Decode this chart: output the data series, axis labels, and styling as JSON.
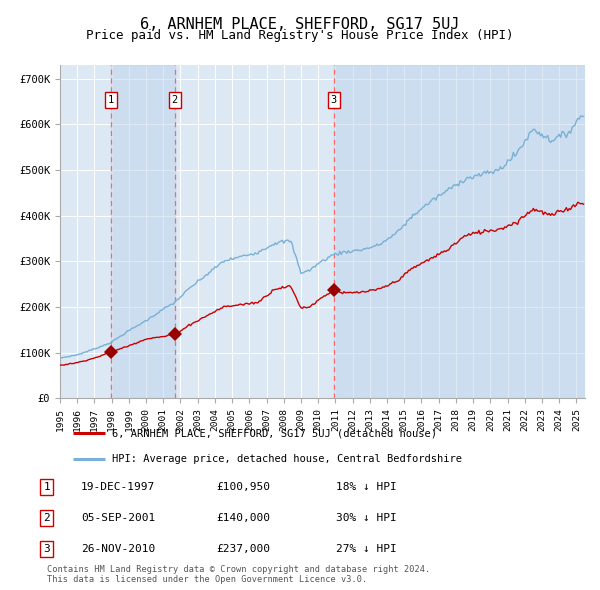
{
  "title": "6, ARNHEM PLACE, SHEFFORD, SG17 5UJ",
  "subtitle": "Price paid vs. HM Land Registry's House Price Index (HPI)",
  "title_fontsize": 11,
  "subtitle_fontsize": 9,
  "background_color": "#ffffff",
  "plot_bg_color": "#dce9f5",
  "grid_color": "#ffffff",
  "ylim": [
    0,
    730000
  ],
  "yticks": [
    0,
    100000,
    200000,
    300000,
    400000,
    500000,
    600000,
    700000
  ],
  "ytick_labels": [
    "£0",
    "£100K",
    "£200K",
    "£300K",
    "£400K",
    "£500K",
    "£600K",
    "£700K"
  ],
  "sale_dates_decimal": [
    1997.96,
    2001.67,
    2010.9
  ],
  "sale_prices": [
    100950,
    140000,
    237000
  ],
  "sale_labels": [
    "1",
    "2",
    "3"
  ],
  "sale_info": [
    {
      "label": "1",
      "date": "19-DEC-1997",
      "price": "£100,950",
      "hpi": "18% ↓ HPI"
    },
    {
      "label": "2",
      "date": "05-SEP-2001",
      "price": "£140,000",
      "hpi": "30% ↓ HPI"
    },
    {
      "label": "3",
      "date": "26-NOV-2010",
      "price": "£237,000",
      "hpi": "27% ↓ HPI"
    }
  ],
  "legend_line1": "6, ARNHEM PLACE, SHEFFORD, SG17 5UJ (detached house)",
  "legend_line2": "HPI: Average price, detached house, Central Bedfordshire",
  "footer": "Contains HM Land Registry data © Crown copyright and database right 2024.\nThis data is licensed under the Open Government Licence v3.0.",
  "red_line_color": "#cc0000",
  "blue_line_color": "#7ab0d4",
  "dashed_line_color": "#ff6666",
  "shade_color": "#b8d0e8",
  "marker_color": "#990000",
  "blue_anchor_years": [
    1995.0,
    1996.0,
    1997.0,
    1997.96,
    1999.0,
    2000.0,
    2001.0,
    2001.67,
    2002.5,
    2003.5,
    2004.5,
    2005.5,
    2006.5,
    2007.5,
    2008.4,
    2009.0,
    2009.5,
    2010.0,
    2010.9,
    2011.5,
    2012.5,
    2013.5,
    2014.5,
    2015.5,
    2016.5,
    2017.5,
    2018.5,
    2019.5,
    2020.5,
    2021.5,
    2022.5,
    2023.5,
    2024.5,
    2025.3
  ],
  "blue_anchor_vals": [
    88000,
    95000,
    108000,
    122000,
    148000,
    170000,
    195000,
    210000,
    240000,
    270000,
    300000,
    310000,
    320000,
    340000,
    345000,
    275000,
    280000,
    295000,
    315000,
    320000,
    325000,
    335000,
    360000,
    400000,
    430000,
    455000,
    480000,
    490000,
    500000,
    535000,
    590000,
    565000,
    580000,
    620000
  ],
  "red_anchor_years": [
    1995.0,
    1996.0,
    1997.0,
    1997.96,
    1999.0,
    2000.0,
    2001.0,
    2001.67,
    2002.5,
    2003.5,
    2004.5,
    2005.5,
    2006.5,
    2007.5,
    2008.4,
    2009.0,
    2009.5,
    2010.0,
    2010.9,
    2011.5,
    2012.5,
    2013.5,
    2014.5,
    2015.5,
    2016.5,
    2017.5,
    2018.5,
    2019.5,
    2020.5,
    2021.5,
    2022.5,
    2023.5,
    2024.5,
    2025.3
  ],
  "red_anchor_vals": [
    72000,
    78000,
    88000,
    100950,
    115000,
    130000,
    135000,
    140000,
    160000,
    180000,
    200000,
    205000,
    210000,
    240000,
    245000,
    198000,
    200000,
    215000,
    237000,
    230000,
    232000,
    238000,
    255000,
    285000,
    305000,
    325000,
    355000,
    365000,
    370000,
    385000,
    415000,
    400000,
    415000,
    430000
  ]
}
